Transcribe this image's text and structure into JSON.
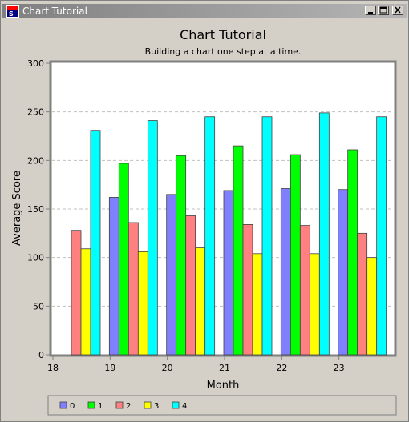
{
  "window": {
    "title": "Chart Tutorial",
    "icon": "app-logo-icon",
    "controls": [
      "minimize-icon",
      "maximize-icon",
      "close-icon"
    ]
  },
  "chart_data": {
    "type": "bar",
    "title": "Chart Tutorial",
    "subtitle": "Building a chart one step at a time.",
    "xlabel": "Month",
    "ylabel": "Average Score",
    "ylim": [
      0,
      300
    ],
    "yticks": [
      0,
      50,
      100,
      150,
      200,
      250,
      300
    ],
    "grid": true,
    "legend_position": "bottom",
    "categories": [
      "18",
      "19",
      "20",
      "21",
      "22",
      "23"
    ],
    "series": [
      {
        "name": "0",
        "color": "#8080ff",
        "values": [
          null,
          162,
          165,
          169,
          171,
          170
        ]
      },
      {
        "name": "1",
        "color": "#00ff00",
        "values": [
          null,
          197,
          205,
          215,
          206,
          211
        ]
      },
      {
        "name": "2",
        "color": "#ff8080",
        "values": [
          128,
          136,
          143,
          134,
          133,
          125
        ]
      },
      {
        "name": "3",
        "color": "#ffff00",
        "values": [
          109,
          106,
          110,
          104,
          104,
          100
        ]
      },
      {
        "name": "4",
        "color": "#00ffff",
        "values": [
          231,
          241,
          245,
          245,
          249,
          245
        ]
      }
    ]
  }
}
